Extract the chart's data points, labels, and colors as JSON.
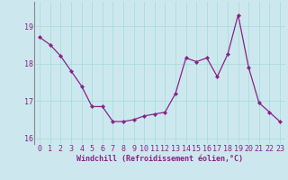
{
  "x": [
    0,
    1,
    2,
    3,
    4,
    5,
    6,
    7,
    8,
    9,
    10,
    11,
    12,
    13,
    14,
    15,
    16,
    17,
    18,
    19,
    20,
    21,
    22,
    23
  ],
  "y": [
    18.7,
    18.5,
    18.2,
    17.8,
    17.4,
    16.85,
    16.85,
    16.45,
    16.45,
    16.5,
    16.6,
    16.65,
    16.7,
    17.2,
    18.15,
    18.05,
    18.15,
    17.65,
    18.25,
    19.3,
    17.9,
    16.95,
    16.7,
    16.45
  ],
  "line_color": "#882288",
  "marker": "D",
  "markersize": 2.2,
  "linewidth": 0.9,
  "xlabel": "Windchill (Refroidissement éolien,°C)",
  "ylabel": "",
  "xlim": [
    -0.5,
    23.5
  ],
  "ylim": [
    15.85,
    19.65
  ],
  "yticks": [
    16,
    17,
    18,
    19
  ],
  "xticks": [
    0,
    1,
    2,
    3,
    4,
    5,
    6,
    7,
    8,
    9,
    10,
    11,
    12,
    13,
    14,
    15,
    16,
    17,
    18,
    19,
    20,
    21,
    22,
    23
  ],
  "background_color": "#cce8ee",
  "grid_color": "#aadddd",
  "tick_color": "#882288",
  "label_color": "#882288",
  "xlabel_fontsize": 6.0,
  "tick_fontsize": 6.0
}
